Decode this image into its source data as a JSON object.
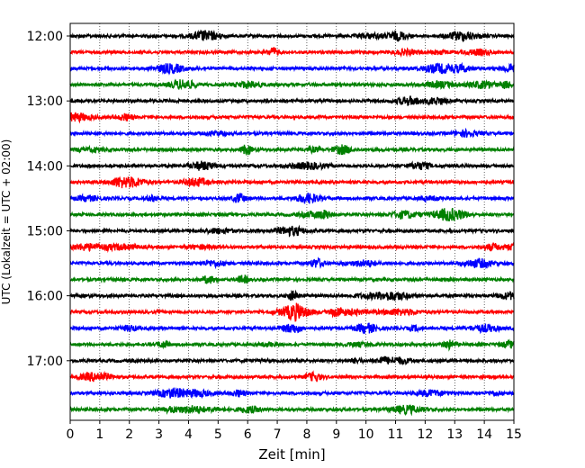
{
  "chart_data": {
    "type": "line",
    "title": "",
    "xlabel": "Zeit  [min]",
    "ylabel": "UTC (Lokalzeit = UTC + 02:00)",
    "xlim": [
      0,
      15
    ],
    "x_ticks": [
      0,
      1,
      2,
      3,
      4,
      5,
      6,
      7,
      8,
      9,
      10,
      11,
      12,
      13,
      14,
      15
    ],
    "x_grid": "dotted",
    "y_tick_labels": [
      "12:00",
      "13:00",
      "14:00",
      "15:00",
      "16:00",
      "17:00"
    ],
    "trace_interval_min": 15,
    "trace_colors": [
      "#000000",
      "#ff0000",
      "#0000ff",
      "#008000"
    ],
    "traces": [
      {
        "utc": "12:00",
        "color": "#000000"
      },
      {
        "utc": "12:15",
        "color": "#ff0000"
      },
      {
        "utc": "12:30",
        "color": "#0000ff"
      },
      {
        "utc": "12:45",
        "color": "#008000"
      },
      {
        "utc": "13:00",
        "color": "#000000"
      },
      {
        "utc": "13:15",
        "color": "#ff0000"
      },
      {
        "utc": "13:30",
        "color": "#0000ff"
      },
      {
        "utc": "13:45",
        "color": "#008000"
      },
      {
        "utc": "14:00",
        "color": "#000000"
      },
      {
        "utc": "14:15",
        "color": "#ff0000"
      },
      {
        "utc": "14:30",
        "color": "#0000ff"
      },
      {
        "utc": "14:45",
        "color": "#008000"
      },
      {
        "utc": "15:00",
        "color": "#000000"
      },
      {
        "utc": "15:15",
        "color": "#ff0000"
      },
      {
        "utc": "15:30",
        "color": "#0000ff"
      },
      {
        "utc": "15:45",
        "color": "#008000"
      },
      {
        "utc": "16:00",
        "color": "#000000"
      },
      {
        "utc": "16:15",
        "color": "#ff0000"
      },
      {
        "utc": "16:30",
        "color": "#0000ff"
      },
      {
        "utc": "16:45",
        "color": "#008000"
      },
      {
        "utc": "17:00",
        "color": "#000000"
      },
      {
        "utc": "17:15",
        "color": "#ff0000"
      },
      {
        "utc": "17:30",
        "color": "#0000ff"
      },
      {
        "utc": "17:45",
        "color": "#008000"
      }
    ]
  }
}
